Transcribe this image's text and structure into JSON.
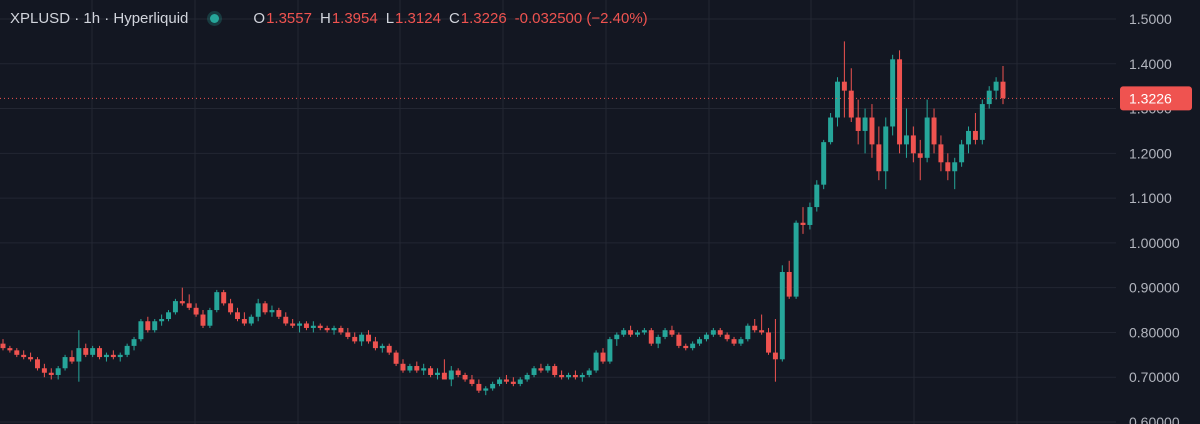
{
  "legend": {
    "symbol": "XPLUSD · 1h · Hyperliquid",
    "o_label": "O",
    "o_value": "1.3557",
    "h_label": "H",
    "h_value": "1.3954",
    "l_label": "L",
    "l_value": "1.3124",
    "c_label": "C",
    "c_value": "1.3226",
    "change": "-0.032500 (−2.40%)"
  },
  "colors": {
    "background": "#131722",
    "grid": "#232733",
    "up": "#26a69a",
    "down": "#ef5350",
    "axis_text": "#b2b5be",
    "price_line": "#ef5350"
  },
  "chart_data": {
    "type": "candlestick",
    "symbol": "XPLUSD",
    "interval": "1h",
    "exchange": "Hyperliquid",
    "ylim": [
      0.6,
      1.55
    ],
    "y_ticks": [
      {
        "value": 1.5,
        "label": "1.5000"
      },
      {
        "value": 1.4,
        "label": "1.4000"
      },
      {
        "value": 1.3,
        "label": "1.3000"
      },
      {
        "value": 1.2,
        "label": "1.2000"
      },
      {
        "value": 1.1,
        "label": "1.1000"
      },
      {
        "value": 1.0,
        "label": "1.00000"
      },
      {
        "value": 0.9,
        "label": "0.90000"
      },
      {
        "value": 0.8,
        "label": "0.80000"
      },
      {
        "value": 0.7,
        "label": "0.70000"
      },
      {
        "value": 0.6,
        "label": "0.60000"
      }
    ],
    "grid": true,
    "last_price": {
      "value": 1.3226,
      "label": "1.3226"
    },
    "candles": [
      [
        0.775,
        0.785,
        0.76,
        0.765
      ],
      [
        0.765,
        0.77,
        0.755,
        0.76
      ],
      [
        0.76,
        0.765,
        0.745,
        0.75
      ],
      [
        0.75,
        0.76,
        0.74,
        0.745
      ],
      [
        0.745,
        0.755,
        0.735,
        0.74
      ],
      [
        0.74,
        0.745,
        0.715,
        0.72
      ],
      [
        0.72,
        0.73,
        0.7,
        0.71
      ],
      [
        0.71,
        0.72,
        0.695,
        0.705
      ],
      [
        0.705,
        0.725,
        0.695,
        0.72
      ],
      [
        0.72,
        0.75,
        0.715,
        0.745
      ],
      [
        0.745,
        0.76,
        0.73,
        0.735
      ],
      [
        0.735,
        0.805,
        0.69,
        0.765
      ],
      [
        0.765,
        0.775,
        0.745,
        0.75
      ],
      [
        0.75,
        0.77,
        0.745,
        0.765
      ],
      [
        0.765,
        0.77,
        0.74,
        0.745
      ],
      [
        0.745,
        0.755,
        0.735,
        0.75
      ],
      [
        0.75,
        0.76,
        0.74,
        0.745
      ],
      [
        0.745,
        0.755,
        0.735,
        0.75
      ],
      [
        0.75,
        0.775,
        0.745,
        0.77
      ],
      [
        0.77,
        0.79,
        0.76,
        0.785
      ],
      [
        0.785,
        0.83,
        0.78,
        0.825
      ],
      [
        0.825,
        0.835,
        0.8,
        0.805
      ],
      [
        0.805,
        0.83,
        0.8,
        0.825
      ],
      [
        0.825,
        0.84,
        0.815,
        0.83
      ],
      [
        0.83,
        0.85,
        0.825,
        0.845
      ],
      [
        0.845,
        0.875,
        0.84,
        0.87
      ],
      [
        0.87,
        0.9,
        0.86,
        0.865
      ],
      [
        0.865,
        0.885,
        0.85,
        0.855
      ],
      [
        0.855,
        0.865,
        0.835,
        0.84
      ],
      [
        0.84,
        0.85,
        0.81,
        0.815
      ],
      [
        0.815,
        0.855,
        0.81,
        0.85
      ],
      [
        0.85,
        0.895,
        0.845,
        0.89
      ],
      [
        0.89,
        0.895,
        0.86,
        0.865
      ],
      [
        0.865,
        0.875,
        0.84,
        0.845
      ],
      [
        0.845,
        0.855,
        0.825,
        0.83
      ],
      [
        0.83,
        0.845,
        0.815,
        0.82
      ],
      [
        0.82,
        0.84,
        0.815,
        0.835
      ],
      [
        0.835,
        0.875,
        0.825,
        0.865
      ],
      [
        0.865,
        0.87,
        0.84,
        0.845
      ],
      [
        0.845,
        0.86,
        0.835,
        0.85
      ],
      [
        0.85,
        0.855,
        0.83,
        0.835
      ],
      [
        0.835,
        0.845,
        0.815,
        0.82
      ],
      [
        0.82,
        0.83,
        0.81,
        0.815
      ],
      [
        0.815,
        0.825,
        0.8,
        0.82
      ],
      [
        0.82,
        0.825,
        0.805,
        0.81
      ],
      [
        0.81,
        0.825,
        0.8,
        0.815
      ],
      [
        0.815,
        0.82,
        0.805,
        0.81
      ],
      [
        0.81,
        0.815,
        0.8,
        0.805
      ],
      [
        0.805,
        0.815,
        0.795,
        0.81
      ],
      [
        0.81,
        0.815,
        0.795,
        0.8
      ],
      [
        0.8,
        0.81,
        0.785,
        0.79
      ],
      [
        0.79,
        0.8,
        0.775,
        0.78
      ],
      [
        0.78,
        0.8,
        0.77,
        0.795
      ],
      [
        0.795,
        0.805,
        0.775,
        0.78
      ],
      [
        0.78,
        0.79,
        0.76,
        0.765
      ],
      [
        0.765,
        0.775,
        0.755,
        0.77
      ],
      [
        0.77,
        0.775,
        0.75,
        0.755
      ],
      [
        0.755,
        0.76,
        0.725,
        0.73
      ],
      [
        0.73,
        0.74,
        0.71,
        0.715
      ],
      [
        0.715,
        0.73,
        0.71,
        0.725
      ],
      [
        0.725,
        0.735,
        0.71,
        0.715
      ],
      [
        0.715,
        0.73,
        0.705,
        0.72
      ],
      [
        0.72,
        0.725,
        0.7,
        0.705
      ],
      [
        0.705,
        0.72,
        0.695,
        0.71
      ],
      [
        0.71,
        0.74,
        0.7,
        0.695
      ],
      [
        0.695,
        0.725,
        0.68,
        0.715
      ],
      [
        0.715,
        0.72,
        0.7,
        0.705
      ],
      [
        0.705,
        0.71,
        0.69,
        0.695
      ],
      [
        0.695,
        0.705,
        0.68,
        0.685
      ],
      [
        0.685,
        0.695,
        0.665,
        0.67
      ],
      [
        0.67,
        0.68,
        0.66,
        0.675
      ],
      [
        0.675,
        0.69,
        0.67,
        0.685
      ],
      [
        0.685,
        0.7,
        0.68,
        0.695
      ],
      [
        0.695,
        0.705,
        0.685,
        0.69
      ],
      [
        0.69,
        0.7,
        0.68,
        0.685
      ],
      [
        0.685,
        0.7,
        0.68,
        0.695
      ],
      [
        0.695,
        0.71,
        0.69,
        0.705
      ],
      [
        0.705,
        0.725,
        0.7,
        0.72
      ],
      [
        0.72,
        0.73,
        0.71,
        0.715
      ],
      [
        0.715,
        0.73,
        0.71,
        0.725
      ],
      [
        0.725,
        0.73,
        0.7,
        0.705
      ],
      [
        0.705,
        0.715,
        0.695,
        0.7
      ],
      [
        0.7,
        0.71,
        0.695,
        0.705
      ],
      [
        0.705,
        0.715,
        0.695,
        0.7
      ],
      [
        0.7,
        0.71,
        0.69,
        0.705
      ],
      [
        0.705,
        0.72,
        0.7,
        0.715
      ],
      [
        0.715,
        0.76,
        0.71,
        0.755
      ],
      [
        0.755,
        0.765,
        0.73,
        0.735
      ],
      [
        0.735,
        0.79,
        0.73,
        0.785
      ],
      [
        0.785,
        0.8,
        0.77,
        0.795
      ],
      [
        0.795,
        0.81,
        0.79,
        0.805
      ],
      [
        0.805,
        0.815,
        0.79,
        0.795
      ],
      [
        0.795,
        0.805,
        0.79,
        0.8
      ],
      [
        0.8,
        0.81,
        0.795,
        0.805
      ],
      [
        0.805,
        0.81,
        0.77,
        0.775
      ],
      [
        0.775,
        0.795,
        0.765,
        0.79
      ],
      [
        0.79,
        0.81,
        0.785,
        0.805
      ],
      [
        0.805,
        0.815,
        0.79,
        0.795
      ],
      [
        0.795,
        0.8,
        0.765,
        0.77
      ],
      [
        0.77,
        0.775,
        0.76,
        0.765
      ],
      [
        0.765,
        0.78,
        0.76,
        0.775
      ],
      [
        0.775,
        0.79,
        0.77,
        0.785
      ],
      [
        0.785,
        0.8,
        0.78,
        0.795
      ],
      [
        0.795,
        0.81,
        0.79,
        0.805
      ],
      [
        0.805,
        0.81,
        0.79,
        0.795
      ],
      [
        0.795,
        0.8,
        0.78,
        0.785
      ],
      [
        0.785,
        0.79,
        0.77,
        0.775
      ],
      [
        0.775,
        0.79,
        0.77,
        0.785
      ],
      [
        0.785,
        0.82,
        0.78,
        0.815
      ],
      [
        0.815,
        0.83,
        0.8,
        0.805
      ],
      [
        0.805,
        0.84,
        0.795,
        0.8
      ],
      [
        0.8,
        0.81,
        0.75,
        0.755
      ],
      [
        0.755,
        0.83,
        0.69,
        0.74
      ],
      [
        0.74,
        0.95,
        0.735,
        0.935
      ],
      [
        0.935,
        0.96,
        0.875,
        0.88
      ],
      [
        0.88,
        1.05,
        0.875,
        1.045
      ],
      [
        1.045,
        1.08,
        1.02,
        1.04
      ],
      [
        1.04,
        1.09,
        1.03,
        1.08
      ],
      [
        1.08,
        1.14,
        1.07,
        1.13
      ],
      [
        1.13,
        1.23,
        1.12,
        1.225
      ],
      [
        1.225,
        1.29,
        1.22,
        1.28
      ],
      [
        1.28,
        1.37,
        1.26,
        1.36
      ],
      [
        1.36,
        1.45,
        1.28,
        1.34
      ],
      [
        1.34,
        1.39,
        1.27,
        1.28
      ],
      [
        1.28,
        1.32,
        1.22,
        1.25
      ],
      [
        1.25,
        1.3,
        1.2,
        1.28
      ],
      [
        1.28,
        1.31,
        1.19,
        1.22
      ],
      [
        1.22,
        1.26,
        1.14,
        1.16
      ],
      [
        1.16,
        1.28,
        1.12,
        1.26
      ],
      [
        1.26,
        1.42,
        1.24,
        1.41
      ],
      [
        1.41,
        1.43,
        1.2,
        1.22
      ],
      [
        1.22,
        1.3,
        1.19,
        1.24
      ],
      [
        1.24,
        1.26,
        1.18,
        1.2
      ],
      [
        1.2,
        1.23,
        1.14,
        1.19
      ],
      [
        1.19,
        1.32,
        1.18,
        1.28
      ],
      [
        1.28,
        1.3,
        1.2,
        1.22
      ],
      [
        1.22,
        1.24,
        1.16,
        1.18
      ],
      [
        1.18,
        1.2,
        1.14,
        1.16
      ],
      [
        1.16,
        1.19,
        1.12,
        1.18
      ],
      [
        1.18,
        1.23,
        1.17,
        1.22
      ],
      [
        1.22,
        1.26,
        1.2,
        1.25
      ],
      [
        1.25,
        1.29,
        1.22,
        1.23
      ],
      [
        1.23,
        1.32,
        1.22,
        1.31
      ],
      [
        1.31,
        1.35,
        1.3,
        1.34
      ],
      [
        1.34,
        1.37,
        1.32,
        1.36
      ],
      [
        1.36,
        1.395,
        1.31,
        1.323
      ]
    ]
  }
}
